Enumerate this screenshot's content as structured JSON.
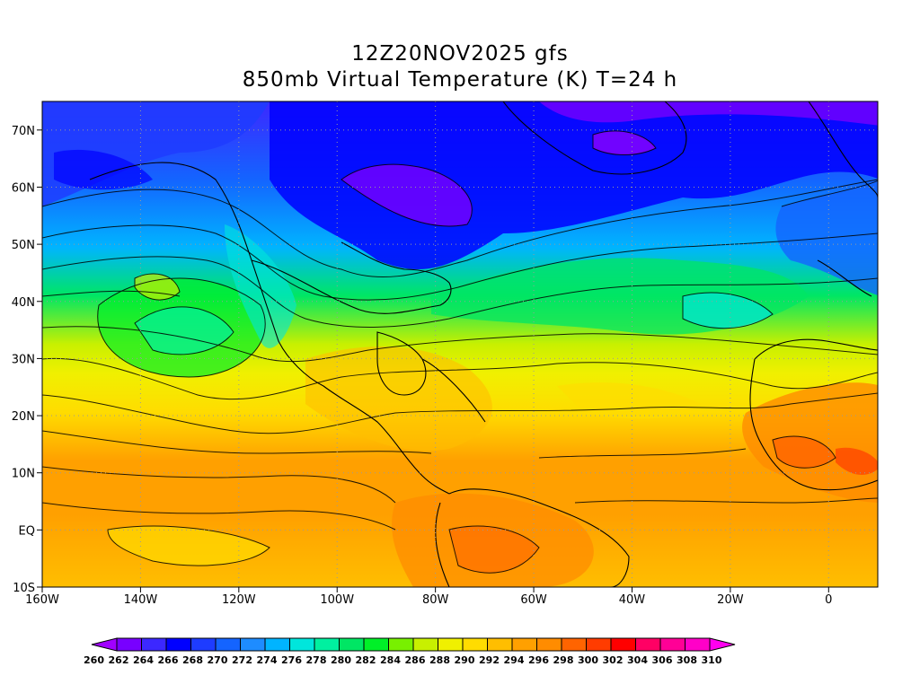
{
  "title": {
    "line1": "12Z20NOV2025 gfs",
    "line2": "850mb Virtual Temperature (K) T=24 h"
  },
  "map": {
    "lon_range": [
      -160,
      10
    ],
    "lat_range": [
      -10,
      75
    ],
    "lat_ticks": [
      {
        "value": 70,
        "label": "70N"
      },
      {
        "value": 60,
        "label": "60N"
      },
      {
        "value": 50,
        "label": "50N"
      },
      {
        "value": 40,
        "label": "40N"
      },
      {
        "value": 30,
        "label": "30N"
      },
      {
        "value": 20,
        "label": "20N"
      },
      {
        "value": 10,
        "label": "10N"
      },
      {
        "value": 0,
        "label": "EQ"
      },
      {
        "value": -10,
        "label": "10S"
      }
    ],
    "lon_ticks": [
      {
        "value": -160,
        "label": "160W"
      },
      {
        "value": -140,
        "label": "140W"
      },
      {
        "value": -120,
        "label": "120W"
      },
      {
        "value": -100,
        "label": "100W"
      },
      {
        "value": -80,
        "label": "80W"
      },
      {
        "value": -60,
        "label": "60W"
      },
      {
        "value": -40,
        "label": "40W"
      },
      {
        "value": -20,
        "label": "20W"
      },
      {
        "value": 0,
        "label": "0"
      }
    ],
    "grid": true
  },
  "colorbar": {
    "levels": [
      260,
      262,
      264,
      266,
      268,
      270,
      272,
      274,
      276,
      278,
      280,
      282,
      284,
      286,
      288,
      290,
      292,
      294,
      296,
      298,
      300,
      302,
      304,
      306,
      308,
      310
    ],
    "labels": [
      "260",
      "262",
      "264",
      "266",
      "268",
      "270",
      "272",
      "274",
      "276",
      "278",
      "280",
      "282",
      "284",
      "286",
      "288",
      "290",
      "292",
      "294",
      "296",
      "298",
      "300",
      "302",
      "304",
      "306",
      "308",
      "310"
    ],
    "colors": [
      "#a000ff",
      "#7800ff",
      "#3c28ff",
      "#0000ff",
      "#1e3cff",
      "#1464ff",
      "#1e8cff",
      "#00b4ff",
      "#00e6dc",
      "#00f0a0",
      "#00e664",
      "#00f028",
      "#78f000",
      "#c8f000",
      "#f0f000",
      "#ffdc00",
      "#ffbe00",
      "#ffa000",
      "#ff8c00",
      "#ff6400",
      "#ff3c00",
      "#ff0000",
      "#ff0064",
      "#ff0096",
      "#ff00c8",
      "#ff00f0"
    ]
  }
}
